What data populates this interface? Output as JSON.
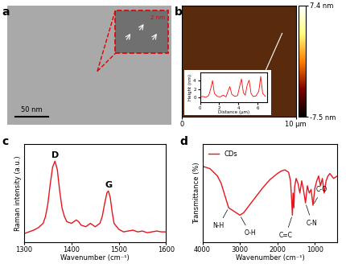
{
  "chart_data": [
    {
      "panel_label": "a",
      "type": "image",
      "scale_bar": "50 nm",
      "inset_scale_bar": "2 nm"
    },
    {
      "panel_label": "b",
      "type": "image",
      "xlim": [
        0,
        10
      ],
      "xticks": [
        0,
        {
          "value": 10,
          "label": "10 μm"
        }
      ],
      "tick_labels": "x",
      "colorbar": {
        "range": [
          -7.5,
          7.4
        ],
        "ticks": [
          {
            "value": -7.5,
            "label": "-7.5 nm"
          },
          {
            "value": 7.4,
            "label": "7.4 nm"
          }
        ]
      },
      "inset": {
        "type": "line",
        "xlabel": "Distance (μm)",
        "ylabel": "Height (nm)",
        "color": "#ff0000",
        "x": [
          0,
          0.3,
          0.6,
          0.9,
          1.1,
          1.3,
          1.5,
          1.8,
          2.1,
          2.4,
          2.7,
          2.9,
          3.1,
          3.3,
          3.6,
          3.9,
          4.1,
          4.3,
          4.5,
          4.7,
          4.9,
          5.1,
          5.3,
          5.5,
          5.8,
          6.1,
          6.3,
          6.5,
          6.8
        ],
        "values": [
          0.2,
          0.3,
          0.1,
          0.5,
          2.0,
          4.0,
          1.0,
          0.3,
          0.2,
          0.6,
          0.2,
          1.5,
          2.6,
          0.8,
          0.3,
          0.5,
          2.5,
          4.4,
          1.2,
          0.6,
          3.0,
          4.1,
          1.0,
          0.3,
          0.4,
          1.5,
          5.0,
          1.0,
          0.3
        ],
        "xlim": [
          0,
          7
        ],
        "xticks": [
          0,
          2,
          4,
          6
        ],
        "ylim": [
          -1,
          6
        ],
        "yticks": [
          0,
          2,
          4
        ]
      }
    },
    {
      "panel_label": "c",
      "type": "line",
      "xlabel": "Wavenumber (cm⁻¹)",
      "ylabel": "Raman intensity (a.u.)",
      "color": "#e8141c",
      "x": [
        1300,
        1310,
        1320,
        1330,
        1340,
        1345,
        1350,
        1355,
        1360,
        1365,
        1370,
        1375,
        1380,
        1385,
        1390,
        1400,
        1410,
        1415,
        1420,
        1430,
        1440,
        1445,
        1450,
        1460,
        1465,
        1470,
        1475,
        1478,
        1482,
        1486,
        1490,
        1500,
        1510,
        1520,
        1530,
        1540,
        1550,
        1560,
        1570,
        1580,
        1590,
        1600
      ],
      "values": [
        0.1,
        0.12,
        0.14,
        0.17,
        0.22,
        0.3,
        0.45,
        0.68,
        0.88,
        0.95,
        0.85,
        0.6,
        0.4,
        0.3,
        0.24,
        0.22,
        0.26,
        0.24,
        0.2,
        0.18,
        0.22,
        0.2,
        0.18,
        0.22,
        0.3,
        0.45,
        0.58,
        0.6,
        0.52,
        0.35,
        0.22,
        0.15,
        0.12,
        0.13,
        0.14,
        0.12,
        0.13,
        0.11,
        0.12,
        0.13,
        0.12,
        0.12
      ],
      "xlim": [
        1300,
        1600
      ],
      "xticks": [
        1300,
        1400,
        1500,
        1600
      ],
      "ylim": [
        0,
        1.15
      ],
      "tick_labels": "x",
      "annotations": [
        {
          "text": "D",
          "x": 1365
        },
        {
          "text": "G",
          "x": 1478
        }
      ]
    },
    {
      "panel_label": "d",
      "type": "line",
      "xlabel": "Wavenumber (cm⁻¹)",
      "ylabel": "Transmittance (%)",
      "series": [
        {
          "name": "CDs",
          "color": "#e8141c",
          "x": [
            4000,
            3800,
            3600,
            3500,
            3400,
            3300,
            3200,
            3100,
            3000,
            2900,
            2800,
            2600,
            2400,
            2200,
            2000,
            1900,
            1800,
            1700,
            1650,
            1620,
            1600,
            1580,
            1560,
            1540,
            1500,
            1450,
            1400,
            1350,
            1300,
            1250,
            1200,
            1150,
            1100,
            1050,
            1000,
            950,
            900,
            850,
            800,
            750,
            700,
            650,
            600,
            500,
            400
          ],
          "values": [
            82,
            80,
            74,
            68,
            58,
            48,
            46,
            44,
            42,
            44,
            48,
            56,
            64,
            71,
            76,
            78,
            79,
            77,
            70,
            55,
            42,
            60,
            48,
            65,
            72,
            68,
            60,
            70,
            62,
            52,
            66,
            60,
            63,
            50,
            64,
            70,
            74,
            66,
            72,
            60,
            70,
            74,
            76,
            72,
            74
          ]
        }
      ],
      "xlim": [
        4000,
        400
      ],
      "xticks": [
        4000,
        3000,
        2000,
        1000
      ],
      "ylim": [
        20,
        100
      ],
      "tick_labels": "x",
      "legend": "upper left",
      "annotations": [
        {
          "text": "N-H",
          "x": 3300
        },
        {
          "text": "O-H",
          "x": 3000
        },
        {
          "text": "C=C",
          "x": 1600
        },
        {
          "text": "C-N",
          "x": 1250
        },
        {
          "text": "C-O",
          "x": 1050
        }
      ]
    }
  ]
}
